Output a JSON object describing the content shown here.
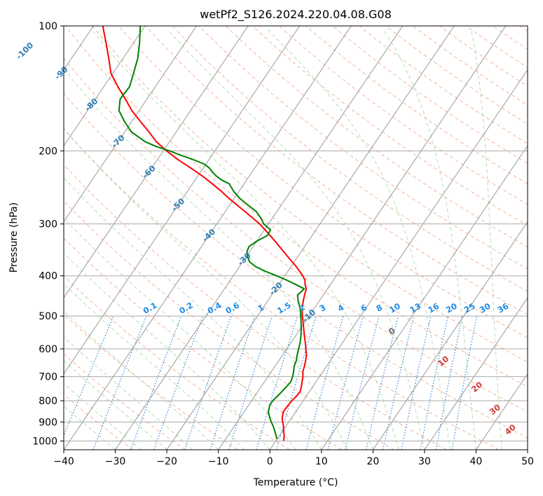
{
  "chart_data": {
    "type": "skew-t",
    "title": "wetPf2_S126.2024.220.04.08.G08",
    "xlabel": "Temperature (°C)",
    "ylabel": "Pressure (hPa)",
    "xlim": [
      -40,
      50
    ],
    "ylim_pressure": [
      1050,
      100
    ],
    "x_ticks": [
      -40,
      -30,
      -20,
      -10,
      0,
      10,
      20,
      30,
      40,
      50
    ],
    "x_tick_labels": [
      "−40",
      "−30",
      "−20",
      "−10",
      "0",
      "10",
      "20",
      "30",
      "40",
      "50"
    ],
    "y_ticks": [
      1000,
      900,
      800,
      700,
      600,
      500,
      400,
      300,
      200,
      100
    ],
    "y_tick_labels": [
      "1000",
      "900",
      "800",
      "700",
      "600",
      "500",
      "400",
      "300",
      "200",
      "100"
    ],
    "grid": true,
    "colors": {
      "temperature": "#ff0000",
      "dewpoint": "#008000",
      "isotherm": "#999999",
      "dry_adiabat": "#f4a582",
      "moist_adiabat": "#a6d7a6",
      "mixing_ratio": "#1f78d4",
      "tan_lines": "#d9bf9f",
      "isobar": "#aaaaaa"
    },
    "series": [
      {
        "key": "temperature",
        "points": [
          [
            1000,
            1.5
          ],
          [
            970,
            0.9
          ],
          [
            950,
            0.3
          ],
          [
            920,
            -0.5
          ],
          [
            900,
            -1.2
          ],
          [
            880,
            -1.8
          ],
          [
            850,
            -2.4
          ],
          [
            820,
            -2.3
          ],
          [
            800,
            -2.2
          ],
          [
            780,
            -1.9
          ],
          [
            760,
            -1.8
          ],
          [
            740,
            -2.2
          ],
          [
            720,
            -2.7
          ],
          [
            700,
            -3.2
          ],
          [
            680,
            -3.9
          ],
          [
            660,
            -4.3
          ],
          [
            640,
            -4.8
          ],
          [
            620,
            -5.4
          ],
          [
            600,
            -6.3
          ],
          [
            580,
            -7.2
          ],
          [
            560,
            -8.2
          ],
          [
            540,
            -9.2
          ],
          [
            520,
            -10.2
          ],
          [
            500,
            -11.3
          ],
          [
            480,
            -12.3
          ],
          [
            460,
            -13.1
          ],
          [
            440,
            -13.8
          ],
          [
            430,
            -14.1
          ],
          [
            420,
            -14.9
          ],
          [
            410,
            -15.5
          ],
          [
            400,
            -16.5
          ],
          [
            380,
            -19.0
          ],
          [
            360,
            -21.9
          ],
          [
            340,
            -24.9
          ],
          [
            320,
            -28.1
          ],
          [
            300,
            -31.7
          ],
          [
            290,
            -33.9
          ],
          [
            280,
            -36.2
          ],
          [
            270,
            -38.6
          ],
          [
            260,
            -41.1
          ],
          [
            250,
            -43.5
          ],
          [
            240,
            -46.2
          ],
          [
            230,
            -49.1
          ],
          [
            220,
            -52.4
          ],
          [
            210,
            -56.0
          ],
          [
            200,
            -59.4
          ],
          [
            190,
            -62.6
          ],
          [
            180,
            -65.3
          ],
          [
            170,
            -68.3
          ],
          [
            160,
            -71.4
          ],
          [
            150,
            -74.2
          ],
          [
            140,
            -77.3
          ],
          [
            130,
            -80.4
          ],
          [
            120,
            -82.7
          ],
          [
            110,
            -85.3
          ],
          [
            100,
            -88.2
          ]
        ]
      },
      {
        "key": "dewpoint",
        "points": [
          [
            990,
            0.0
          ],
          [
            970,
            -0.7
          ],
          [
            950,
            -1.4
          ],
          [
            920,
            -2.5
          ],
          [
            900,
            -3.4
          ],
          [
            880,
            -4.2
          ],
          [
            850,
            -5.3
          ],
          [
            820,
            -5.9
          ],
          [
            800,
            -5.9
          ],
          [
            780,
            -5.6
          ],
          [
            760,
            -5.3
          ],
          [
            740,
            -5.1
          ],
          [
            720,
            -4.9
          ],
          [
            700,
            -5.2
          ],
          [
            680,
            -5.7
          ],
          [
            660,
            -6.3
          ],
          [
            640,
            -6.6
          ],
          [
            620,
            -7.2
          ],
          [
            600,
            -7.7
          ],
          [
            580,
            -8.2
          ],
          [
            560,
            -8.9
          ],
          [
            540,
            -9.7
          ],
          [
            520,
            -10.6
          ],
          [
            500,
            -11.6
          ],
          [
            480,
            -12.7
          ],
          [
            460,
            -14.1
          ],
          [
            445,
            -15.0
          ],
          [
            430,
            -14.5
          ],
          [
            420,
            -16.7
          ],
          [
            410,
            -19.0
          ],
          [
            400,
            -21.6
          ],
          [
            390,
            -24.4
          ],
          [
            380,
            -26.9
          ],
          [
            370,
            -28.7
          ],
          [
            360,
            -29.7
          ],
          [
            350,
            -30.5
          ],
          [
            340,
            -30.8
          ],
          [
            330,
            -30.0
          ],
          [
            320,
            -28.7
          ],
          [
            310,
            -28.8
          ],
          [
            300,
            -30.9
          ],
          [
            290,
            -32.3
          ],
          [
            280,
            -34.0
          ],
          [
            270,
            -36.5
          ],
          [
            260,
            -39.0
          ],
          [
            250,
            -41.1
          ],
          [
            240,
            -42.9
          ],
          [
            235,
            -44.9
          ],
          [
            230,
            -46.4
          ],
          [
            225,
            -47.7
          ],
          [
            220,
            -48.8
          ],
          [
            215,
            -50.4
          ],
          [
            210,
            -53.0
          ],
          [
            205,
            -56.0
          ],
          [
            200,
            -58.8
          ],
          [
            195,
            -62.1
          ],
          [
            190,
            -64.8
          ],
          [
            180,
            -68.7
          ],
          [
            170,
            -71.4
          ],
          [
            160,
            -73.9
          ],
          [
            150,
            -75.2
          ],
          [
            140,
            -75.0
          ],
          [
            130,
            -76.0
          ],
          [
            120,
            -77.1
          ],
          [
            110,
            -78.8
          ],
          [
            100,
            -80.9
          ]
        ]
      }
    ],
    "isotherm_labels": [
      {
        "text": "-100",
        "T": -100,
        "p": 115
      },
      {
        "text": "-90",
        "T": -90,
        "p": 130
      },
      {
        "text": "-80",
        "T": -80,
        "p": 155
      },
      {
        "text": "-70",
        "T": -70,
        "p": 190
      },
      {
        "text": "-60",
        "T": -60,
        "p": 225
      },
      {
        "text": "-50",
        "T": -50,
        "p": 270
      },
      {
        "text": "-40",
        "T": -40,
        "p": 320
      },
      {
        "text": "-30",
        "T": -30,
        "p": 365
      },
      {
        "text": "-20",
        "T": -20,
        "p": 430
      },
      {
        "text": "-10",
        "T": -10,
        "p": 500
      }
    ],
    "mixing_ratio_labels": [
      "0.1",
      "0.2",
      "0.4",
      "0.6",
      "1",
      "1.5",
      "2",
      "3",
      "4",
      "6",
      "8",
      "10",
      "13",
      "16",
      "20",
      "25",
      "30",
      "36"
    ],
    "mixing_ratio_label_temps": [
      -23,
      -16,
      -10.5,
      -7,
      -1.5,
      3,
      6.5,
      10.5,
      14,
      18.5,
      21.5,
      24.5,
      28.5,
      32,
      35.5,
      39,
      42,
      45.5
    ],
    "mixing_ratio_label_pressure": 500,
    "surface_temp_labels": [
      {
        "text": "0",
        "T": 24,
        "p": 550,
        "color": "gray"
      },
      {
        "text": "10",
        "T": 34,
        "p": 650,
        "color": "red"
      },
      {
        "text": "20",
        "T": 40.5,
        "p": 750,
        "color": "red"
      },
      {
        "text": "30",
        "T": 44,
        "p": 850,
        "color": "red"
      },
      {
        "text": "40",
        "T": 47,
        "p": 950,
        "color": "red"
      }
    ]
  }
}
